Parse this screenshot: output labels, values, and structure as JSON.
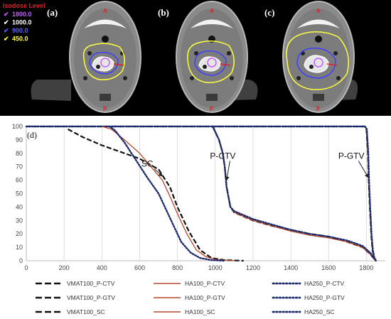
{
  "ct_panels": [
    {
      "label": "(a)",
      "spread": 1.0
    },
    {
      "label": "(b)",
      "spread": 1.15
    },
    {
      "label": "(c)",
      "spread": 1.6
    }
  ],
  "isodose": {
    "title": "Isodose Level",
    "items": [
      {
        "label": "1800.0",
        "color": "#c060ff"
      },
      {
        "label": "1000.0",
        "color": "#ffffff"
      },
      {
        "label": "900.0",
        "color": "#6060ff"
      },
      {
        "label": "450.0",
        "color": "#ffff40"
      }
    ]
  },
  "orientation": {
    "anterior": "A",
    "posterior": "P"
  },
  "chart_data": {
    "type": "line",
    "panel_label": "(d)",
    "xlim": [
      0,
      1900
    ],
    "ylim": [
      0,
      100
    ],
    "x_ticks": [
      "0",
      "200",
      "400",
      "600",
      "800",
      "1000",
      "1200",
      "1400",
      "1600",
      "1800"
    ],
    "y_ticks": [
      "0",
      "10",
      "20",
      "30",
      "40",
      "50",
      "60",
      "70",
      "80",
      "90",
      "100"
    ],
    "grid": "vertical",
    "annotations": [
      {
        "text": "SC",
        "text_x": 640,
        "text_y": 70,
        "arrow_to": [
          720,
          63
        ]
      },
      {
        "text": "P-CTV",
        "text_x": 1040,
        "text_y": 76,
        "arrow_to": [
          1060,
          60
        ]
      },
      {
        "text": "P-GTV",
        "text_x": 1720,
        "text_y": 76,
        "arrow_to": [
          1810,
          62
        ]
      }
    ],
    "series": [
      {
        "name": "VMAT100_P-CTV",
        "color": "#111111",
        "dash": "dash",
        "points": [
          [
            985,
            100
          ],
          [
            990,
            99
          ],
          [
            1000,
            96
          ],
          [
            1020,
            90
          ],
          [
            1040,
            80
          ],
          [
            1050,
            70
          ],
          [
            1060,
            55
          ],
          [
            1080,
            40
          ],
          [
            1100,
            36
          ],
          [
            1200,
            30
          ],
          [
            1300,
            26
          ],
          [
            1400,
            23
          ],
          [
            1500,
            20
          ],
          [
            1600,
            18
          ],
          [
            1700,
            14
          ],
          [
            1780,
            10
          ],
          [
            1820,
            5
          ],
          [
            1850,
            0
          ]
        ]
      },
      {
        "name": "HA100_P-CTV",
        "color": "#b5462a",
        "dash": "solid",
        "points": [
          [
            985,
            100
          ],
          [
            990,
            99
          ],
          [
            1000,
            96
          ],
          [
            1020,
            90
          ],
          [
            1040,
            80
          ],
          [
            1050,
            70
          ],
          [
            1060,
            55
          ],
          [
            1080,
            40
          ],
          [
            1100,
            36
          ],
          [
            1200,
            30
          ],
          [
            1300,
            26
          ],
          [
            1400,
            22
          ],
          [
            1500,
            19
          ],
          [
            1600,
            17
          ],
          [
            1700,
            14
          ],
          [
            1780,
            10
          ],
          [
            1820,
            5
          ],
          [
            1850,
            0
          ]
        ]
      },
      {
        "name": "HA250_P-CTV",
        "color": "#1a2a6c",
        "dash": "dot",
        "points": [
          [
            985,
            100
          ],
          [
            990,
            99
          ],
          [
            1000,
            96
          ],
          [
            1020,
            90
          ],
          [
            1040,
            80
          ],
          [
            1050,
            70
          ],
          [
            1060,
            55
          ],
          [
            1080,
            40
          ],
          [
            1100,
            37
          ],
          [
            1200,
            31
          ],
          [
            1300,
            27
          ],
          [
            1400,
            23
          ],
          [
            1500,
            20
          ],
          [
            1600,
            18
          ],
          [
            1700,
            15
          ],
          [
            1780,
            11
          ],
          [
            1820,
            6
          ],
          [
            1850,
            0
          ]
        ]
      },
      {
        "name": "VMAT100_P-GTV",
        "color": "#111111",
        "dash": "dash",
        "points": [
          [
            0,
            100
          ],
          [
            1790,
            100
          ],
          [
            1800,
            98
          ],
          [
            1808,
            80
          ],
          [
            1812,
            60
          ],
          [
            1818,
            40
          ],
          [
            1825,
            20
          ],
          [
            1832,
            8
          ],
          [
            1840,
            2
          ],
          [
            1850,
            0
          ]
        ]
      },
      {
        "name": "HA100_P-GTV",
        "color": "#b5462a",
        "dash": "solid",
        "points": [
          [
            0,
            100
          ],
          [
            1790,
            100
          ],
          [
            1800,
            98
          ],
          [
            1808,
            80
          ],
          [
            1812,
            60
          ],
          [
            1818,
            40
          ],
          [
            1825,
            20
          ],
          [
            1832,
            8
          ],
          [
            1840,
            2
          ],
          [
            1850,
            0
          ]
        ]
      },
      {
        "name": "HA250_P-GTV",
        "color": "#1a2a6c",
        "dash": "dot",
        "points": [
          [
            0,
            100
          ],
          [
            1792,
            100
          ],
          [
            1802,
            98
          ],
          [
            1810,
            80
          ],
          [
            1814,
            60
          ],
          [
            1820,
            40
          ],
          [
            1827,
            20
          ],
          [
            1834,
            8
          ],
          [
            1842,
            2
          ],
          [
            1852,
            0
          ]
        ]
      },
      {
        "name": "VMAT100_SC",
        "color": "#111111",
        "dash": "dash",
        "points": [
          [
            220,
            98
          ],
          [
            300,
            92
          ],
          [
            400,
            86
          ],
          [
            500,
            81
          ],
          [
            600,
            76
          ],
          [
            700,
            68
          ],
          [
            760,
            55
          ],
          [
            800,
            40
          ],
          [
            860,
            22
          ],
          [
            920,
            8
          ],
          [
            980,
            2
          ],
          [
            1050,
            0.5
          ],
          [
            1150,
            0
          ]
        ]
      },
      {
        "name": "HA100_SC",
        "color": "#b5462a",
        "dash": "solid",
        "points": [
          [
            400,
            100
          ],
          [
            450,
            98
          ],
          [
            520,
            90
          ],
          [
            600,
            80
          ],
          [
            660,
            70
          ],
          [
            720,
            60
          ],
          [
            760,
            48
          ],
          [
            800,
            35
          ],
          [
            850,
            20
          ],
          [
            900,
            8
          ],
          [
            950,
            3
          ],
          [
            1000,
            1
          ],
          [
            1100,
            0
          ]
        ]
      },
      {
        "name": "HA250_SC",
        "color": "#1a2a6c",
        "dash": "dot",
        "points": [
          [
            440,
            100
          ],
          [
            470,
            97
          ],
          [
            520,
            88
          ],
          [
            580,
            75
          ],
          [
            640,
            62
          ],
          [
            700,
            50
          ],
          [
            740,
            38
          ],
          [
            780,
            26
          ],
          [
            820,
            14
          ],
          [
            870,
            6
          ],
          [
            920,
            2
          ],
          [
            980,
            0.5
          ],
          [
            1050,
            0
          ]
        ]
      }
    ]
  }
}
